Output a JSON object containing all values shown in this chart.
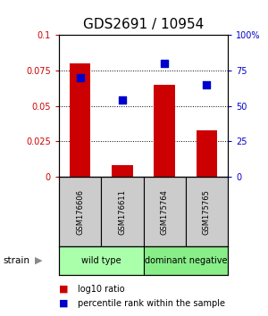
{
  "title": "GDS2691 / 10954",
  "samples": [
    "GSM176606",
    "GSM176611",
    "GSM175764",
    "GSM175765"
  ],
  "log10_ratio": [
    0.08,
    0.008,
    0.065,
    0.033
  ],
  "percentile_rank": [
    0.7,
    0.54,
    0.8,
    0.65
  ],
  "bar_color": "#cc0000",
  "dot_color": "#0000cc",
  "ylim_left": [
    0,
    0.1
  ],
  "ylim_right": [
    0,
    1.0
  ],
  "yticks_left": [
    0,
    0.025,
    0.05,
    0.075,
    0.1
  ],
  "ytick_labels_left": [
    "0",
    "0.025",
    "0.05",
    "0.075",
    "0.1"
  ],
  "yticks_right": [
    0,
    0.25,
    0.5,
    0.75,
    1.0
  ],
  "ytick_labels_right": [
    "0",
    "25",
    "50",
    "75",
    "100%"
  ],
  "groups": [
    {
      "label": "wild type",
      "samples": [
        0,
        1
      ],
      "color": "#aaffaa"
    },
    {
      "label": "dominant negative",
      "samples": [
        2,
        3
      ],
      "color": "#88ee88"
    }
  ],
  "strain_label": "strain",
  "legend_red": "log10 ratio",
  "legend_blue": "percentile rank within the sample",
  "bar_width": 0.5,
  "dot_size": 30,
  "title_fontsize": 11,
  "tick_label_color_left": "#cc0000",
  "tick_label_color_right": "#0000cc",
  "label_box_color": "#cccccc",
  "fig_width": 3.0,
  "fig_height": 3.54
}
